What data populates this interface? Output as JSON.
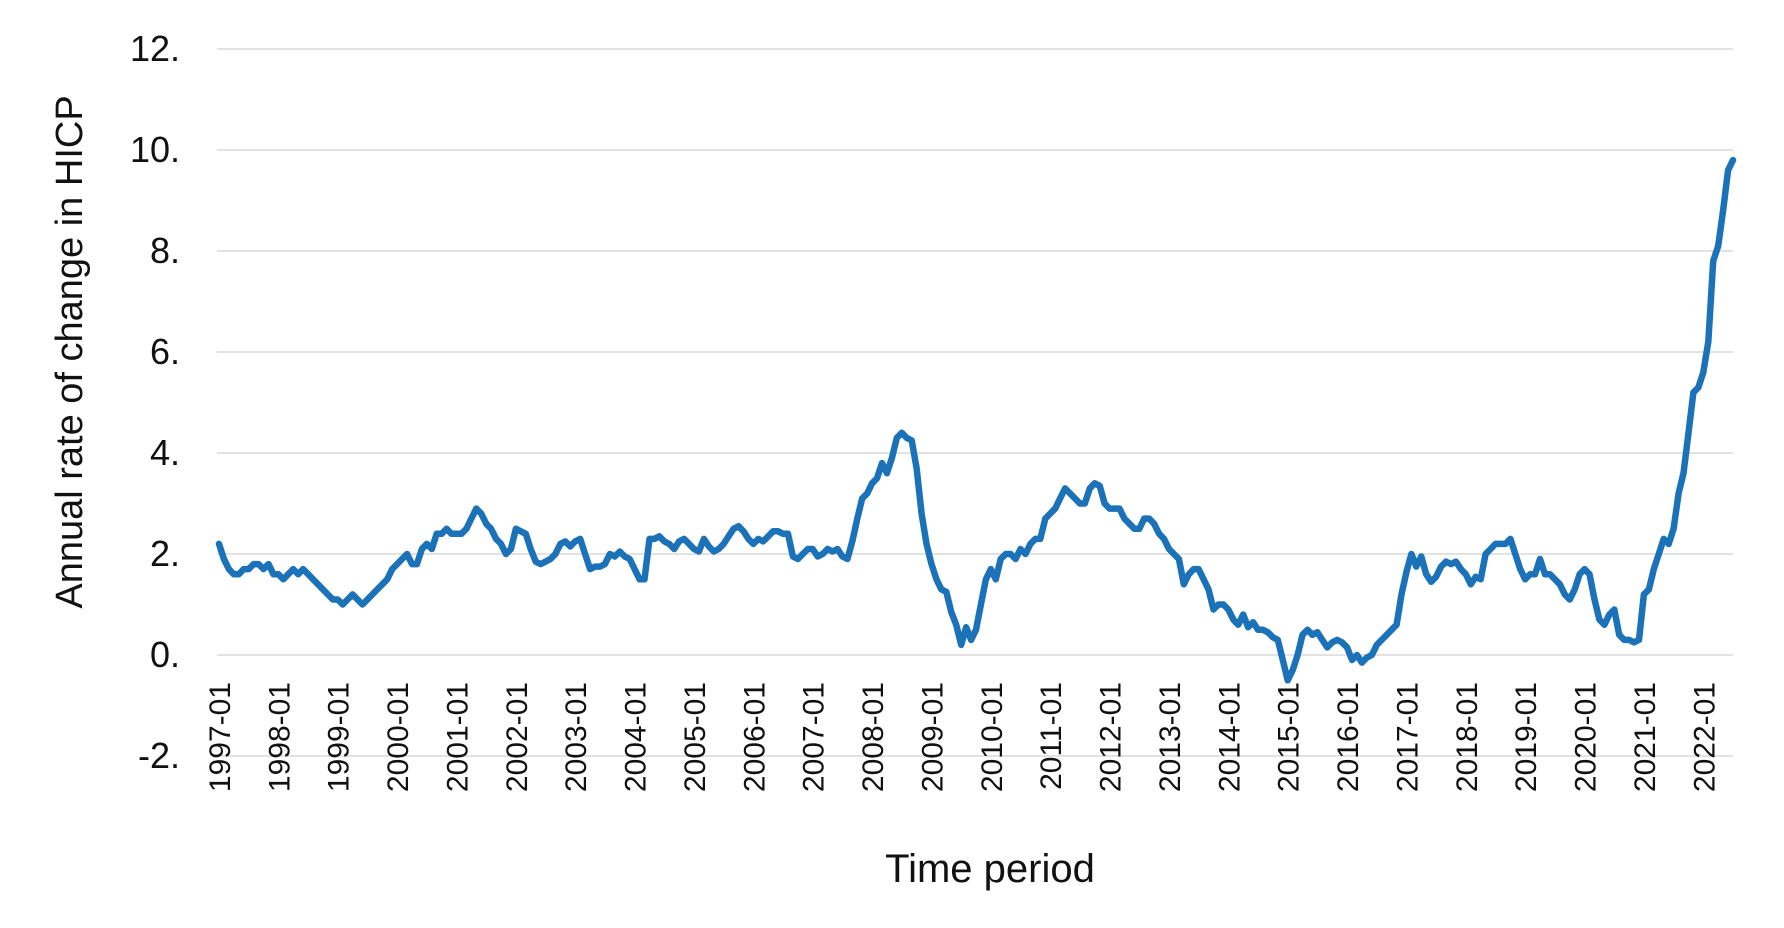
{
  "chart_data": {
    "type": "line",
    "title": "",
    "xlabel": "Time period",
    "ylabel": "Annual rate of change in HICP",
    "ylim": [
      -2,
      12
    ],
    "y_tick_step": 2,
    "grid": true,
    "legend_position": "none",
    "background_color": "#ffffff",
    "line_color": "#1b72b8",
    "gridline_color": "#d9d9d9",
    "text_color": "#111111",
    "y_ticks": [
      {
        "value": 12,
        "label": "12."
      },
      {
        "value": 10,
        "label": "10."
      },
      {
        "value": 8,
        "label": "8."
      },
      {
        "value": 6,
        "label": "6."
      },
      {
        "value": 4,
        "label": "4."
      },
      {
        "value": 2,
        "label": "2."
      },
      {
        "value": 0,
        "label": "0."
      },
      {
        "value": -2,
        "label": "-2."
      }
    ],
    "x_tick_labels": [
      "1997-01",
      "1998-01",
      "1999-01",
      "2000-01",
      "2001-01",
      "2002-01",
      "2003-01",
      "2004-01",
      "2005-01",
      "2006-01",
      "2007-01",
      "2008-01",
      "2009-01",
      "2010-01",
      "2011-01",
      "2012-01",
      "2013-01",
      "2014-01",
      "2015-01",
      "2016-01",
      "2017-01",
      "2018-01",
      "2019-01",
      "2020-01",
      "2021-01",
      "2022-01"
    ],
    "x_start": "1997-01",
    "x_end": "2022-07",
    "x_frequency": "monthly",
    "series": [
      {
        "name": "Annual rate of change in HICP",
        "values": [
          2.2,
          1.9,
          1.7,
          1.6,
          1.6,
          1.7,
          1.7,
          1.8,
          1.8,
          1.7,
          1.8,
          1.6,
          1.6,
          1.5,
          1.6,
          1.7,
          1.6,
          1.7,
          1.6,
          1.5,
          1.4,
          1.3,
          1.2,
          1.1,
          1.1,
          1.0,
          1.1,
          1.2,
          1.1,
          1.0,
          1.1,
          1.2,
          1.3,
          1.4,
          1.5,
          1.7,
          1.8,
          1.9,
          2.0,
          1.8,
          1.8,
          2.1,
          2.2,
          2.1,
          2.4,
          2.4,
          2.5,
          2.4,
          2.4,
          2.4,
          2.5,
          2.7,
          2.9,
          2.8,
          2.6,
          2.5,
          2.3,
          2.2,
          2.0,
          2.1,
          2.5,
          2.45,
          2.4,
          2.1,
          1.85,
          1.8,
          1.85,
          1.9,
          2.0,
          2.2,
          2.25,
          2.15,
          2.25,
          2.3,
          2.0,
          1.7,
          1.75,
          1.75,
          1.8,
          2.0,
          1.95,
          2.05,
          1.95,
          1.9,
          1.7,
          1.5,
          1.5,
          2.3,
          2.3,
          2.35,
          2.25,
          2.2,
          2.1,
          2.25,
          2.3,
          2.2,
          2.1,
          2.05,
          2.3,
          2.15,
          2.05,
          2.1,
          2.2,
          2.35,
          2.5,
          2.55,
          2.45,
          2.3,
          2.2,
          2.3,
          2.25,
          2.35,
          2.45,
          2.45,
          2.4,
          2.4,
          1.95,
          1.9,
          2.0,
          2.1,
          2.1,
          1.95,
          2.0,
          2.1,
          2.05,
          2.1,
          1.95,
          1.9,
          2.25,
          2.7,
          3.1,
          3.2,
          3.4,
          3.5,
          3.8,
          3.6,
          3.9,
          4.3,
          4.4,
          4.3,
          4.25,
          3.7,
          2.8,
          2.2,
          1.8,
          1.5,
          1.3,
          1.25,
          0.85,
          0.6,
          0.2,
          0.55,
          0.3,
          0.5,
          1.0,
          1.5,
          1.7,
          1.5,
          1.9,
          2.0,
          2.0,
          1.9,
          2.1,
          2.0,
          2.2,
          2.3,
          2.3,
          2.7,
          2.8,
          2.9,
          3.1,
          3.3,
          3.2,
          3.1,
          3.0,
          3.0,
          3.3,
          3.4,
          3.35,
          3.0,
          2.9,
          2.9,
          2.9,
          2.7,
          2.6,
          2.5,
          2.5,
          2.7,
          2.7,
          2.6,
          2.4,
          2.3,
          2.1,
          2.0,
          1.9,
          1.4,
          1.6,
          1.7,
          1.7,
          1.5,
          1.3,
          0.9,
          1.0,
          1.0,
          0.9,
          0.7,
          0.6,
          0.8,
          0.55,
          0.65,
          0.5,
          0.5,
          0.45,
          0.35,
          0.3,
          -0.1,
          -0.5,
          -0.3,
          0.0,
          0.4,
          0.5,
          0.4,
          0.45,
          0.3,
          0.15,
          0.25,
          0.3,
          0.25,
          0.15,
          -0.1,
          0.0,
          -0.15,
          -0.05,
          0.0,
          0.2,
          0.3,
          0.4,
          0.5,
          0.6,
          1.2,
          1.65,
          2.0,
          1.75,
          1.95,
          1.6,
          1.45,
          1.55,
          1.75,
          1.85,
          1.8,
          1.85,
          1.7,
          1.6,
          1.4,
          1.55,
          1.5,
          2.0,
          2.1,
          2.2,
          2.2,
          2.2,
          2.3,
          2.0,
          1.7,
          1.5,
          1.6,
          1.6,
          1.9,
          1.6,
          1.6,
          1.5,
          1.4,
          1.2,
          1.1,
          1.3,
          1.6,
          1.7,
          1.6,
          1.1,
          0.7,
          0.6,
          0.8,
          0.9,
          0.4,
          0.3,
          0.3,
          0.25,
          0.3,
          1.2,
          1.3,
          1.7,
          2.0,
          2.3,
          2.2,
          2.5,
          3.2,
          3.6,
          4.4,
          5.2,
          5.3,
          5.6,
          6.2,
          7.8,
          8.1,
          8.8,
          9.6,
          9.8
        ]
      }
    ]
  }
}
